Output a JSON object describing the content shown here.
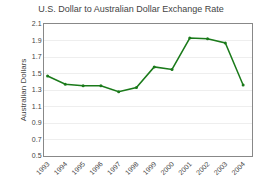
{
  "chart_data": {
    "type": "line",
    "title": "U.S. Dollar to Australian Dollar Exchange Rate",
    "y_label": "Australian Dollars",
    "x": [
      1993,
      1994,
      1995,
      1996,
      1997,
      1998,
      1999,
      2000,
      2001,
      2002,
      2003,
      2004
    ],
    "values": [
      1.47,
      1.37,
      1.35,
      1.35,
      1.28,
      1.33,
      1.58,
      1.55,
      1.93,
      1.92,
      1.87,
      1.36
    ],
    "color": "#1a7a1a",
    "marker": "circle",
    "line_style": "solid",
    "xlim": [
      1992.8,
      2004.5
    ],
    "xticks": [
      1993,
      1994,
      1995,
      1996,
      1997,
      1998,
      1999,
      2000,
      2001,
      2002,
      2003,
      2004
    ],
    "ylim": [
      0.5,
      2.1
    ],
    "yticks": [
      0.5,
      0.7,
      0.9,
      1.1,
      1.3,
      1.5,
      1.7,
      1.9,
      2.1
    ],
    "grid": "y"
  }
}
